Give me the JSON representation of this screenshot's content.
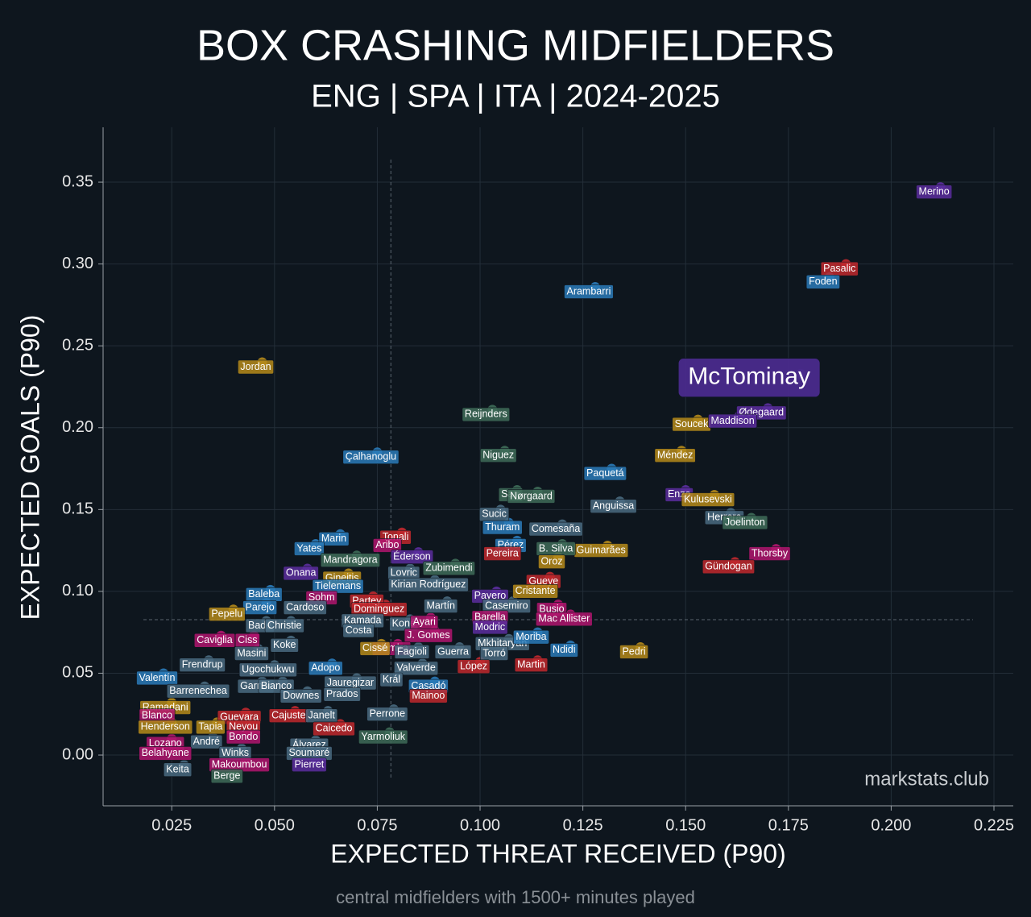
{
  "chart_data": {
    "type": "scatter",
    "title": "BOX CRASHING MIDFIELDERS",
    "subtitle": "ENG | SPA | ITA | 2024-2025",
    "x_label": "EXPECTED THREAT RECEIVED (P90)",
    "y_label": "EXPECTED GOALS (P90)",
    "watermark": "markstats.club",
    "caption": "central midfielders with 1500+ minutes played",
    "xlim": [
      0.0083,
      0.2297
    ],
    "ylim": [
      -0.031,
      0.3835
    ],
    "xticks": [
      0.025,
      {
        "value": 0.05,
        "label": "0.050"
      },
      0.075,
      {
        "value": 0.1,
        "label": "0.100"
      },
      0.125,
      {
        "value": 0.15,
        "label": "0.150"
      },
      0.175,
      {
        "value": 0.2,
        "label": "0.200"
      },
      0.225
    ],
    "yticks": [
      {
        "value": 0,
        "label": "0.00"
      },
      0.05,
      {
        "value": 0.1,
        "label": "0.10"
      },
      0.15,
      {
        "value": 0.2,
        "label": "0.20"
      },
      0.25,
      {
        "value": 0.3,
        "label": "0.30"
      },
      0.35
    ],
    "grid": true,
    "reference_lines": {
      "x": 0.0783,
      "y": 0.0827
    },
    "highlight": "McTominay",
    "points": [
      {
        "label": "Merino",
        "x": 0.212,
        "y": 0.347,
        "color": "#5b2d9e"
      },
      {
        "label": "Pasalic",
        "x": 0.189,
        "y": 0.3,
        "color": "#c0282d"
      },
      {
        "label": "Foden",
        "x": 0.185,
        "y": 0.292,
        "color": "#2a7ab8"
      },
      {
        "label": "Arambarri",
        "x": 0.128,
        "y": 0.286,
        "color": "#2a7ab8"
      },
      {
        "label": "McTominay",
        "x": 0.178,
        "y": 0.233,
        "color": "#4a2a8c"
      },
      {
        "label": "Jordan",
        "x": 0.047,
        "y": 0.24,
        "color": "#b58a1a"
      },
      {
        "label": "Ødegaard",
        "x": 0.17,
        "y": 0.212,
        "color": "#5b2d9e"
      },
      {
        "label": "Soucek",
        "x": 0.153,
        "y": 0.205,
        "color": "#b58a1a"
      },
      {
        "label": "Maddison",
        "x": 0.163,
        "y": 0.207,
        "color": "#5b2d9e"
      },
      {
        "label": "Reijnders",
        "x": 0.103,
        "y": 0.211,
        "color": "#3e6b58"
      },
      {
        "label": "Çalhanoglu",
        "x": 0.075,
        "y": 0.185,
        "color": "#2a7ab8"
      },
      {
        "label": "Niguez",
        "x": 0.106,
        "y": 0.186,
        "color": "#3e6b58"
      },
      {
        "label": "Paquetá",
        "x": 0.132,
        "y": 0.175,
        "color": "#2a7ab8"
      },
      {
        "label": "Méndez",
        "x": 0.149,
        "y": 0.186,
        "color": "#b58a1a"
      },
      {
        "label": "Sarr",
        "x": 0.109,
        "y": 0.162,
        "color": "#3e6b58"
      },
      {
        "label": "Nørgaard",
        "x": 0.114,
        "y": 0.161,
        "color": "#3e6b58"
      },
      {
        "label": "Enzo",
        "x": 0.15,
        "y": 0.162,
        "color": "#5b2d9e"
      },
      {
        "label": "Kulusevski",
        "x": 0.157,
        "y": 0.159,
        "color": "#b58a1a"
      },
      {
        "label": "Sucic",
        "x": 0.105,
        "y": 0.15,
        "color": "#496a80"
      },
      {
        "label": "Anguissa",
        "x": 0.134,
        "y": 0.155,
        "color": "#496a80"
      },
      {
        "label": "Comesaña",
        "x": 0.12,
        "y": 0.141,
        "color": "#496a80"
      },
      {
        "label": "Herrera",
        "x": 0.161,
        "y": 0.148,
        "color": "#496a80"
      },
      {
        "label": "Joelinton",
        "x": 0.166,
        "y": 0.145,
        "color": "#3e6b58"
      },
      {
        "label": "Thuram",
        "x": 0.107,
        "y": 0.142,
        "color": "#2a7ab8"
      },
      {
        "label": "Tonali",
        "x": 0.081,
        "y": 0.136,
        "color": "#c0282d"
      },
      {
        "label": "Marin",
        "x": 0.066,
        "y": 0.135,
        "color": "#2a7ab8"
      },
      {
        "label": "Aribo",
        "x": 0.079,
        "y": 0.131,
        "color": "#b0156e"
      },
      {
        "label": "Pérez",
        "x": 0.109,
        "y": 0.131,
        "color": "#2a7ab8"
      },
      {
        "label": "Yates",
        "x": 0.06,
        "y": 0.129,
        "color": "#2a7ab8"
      },
      {
        "label": "Éderson",
        "x": 0.085,
        "y": 0.124,
        "color": "#5b2d9e"
      },
      {
        "label": "Guimarães",
        "x": 0.131,
        "y": 0.128,
        "color": "#b58a1a"
      },
      {
        "label": "Thorsby",
        "x": 0.172,
        "y": 0.126,
        "color": "#b0156e"
      },
      {
        "label": "Mandragora",
        "x": 0.07,
        "y": 0.122,
        "color": "#3e6b58"
      },
      {
        "label": "B. Silva",
        "x": 0.12,
        "y": 0.129,
        "color": "#3e6b58"
      },
      {
        "label": "Oroz",
        "x": 0.119,
        "y": 0.121,
        "color": "#b58a1a"
      },
      {
        "label": "Pereira",
        "x": 0.107,
        "y": 0.126,
        "color": "#c0282d"
      },
      {
        "label": "Onana",
        "x": 0.058,
        "y": 0.114,
        "color": "#5b2d9e"
      },
      {
        "label": "Lovric",
        "x": 0.083,
        "y": 0.114,
        "color": "#496a80"
      },
      {
        "label": "Zubimendi",
        "x": 0.094,
        "y": 0.117,
        "color": "#3e6b58"
      },
      {
        "label": "Gündogan",
        "x": 0.162,
        "y": 0.118,
        "color": "#c0282d"
      },
      {
        "label": "Gineitis",
        "x": 0.068,
        "y": 0.111,
        "color": "#b58a1a"
      },
      {
        "label": "Tielemans",
        "x": 0.067,
        "y": 0.106,
        "color": "#2a7ab8"
      },
      {
        "label": "Kirian Rodríguez",
        "x": 0.089,
        "y": 0.107,
        "color": "#496a80"
      },
      {
        "label": "Gueye",
        "x": 0.117,
        "y": 0.109,
        "color": "#c0282d"
      },
      {
        "label": "Baleba",
        "x": 0.049,
        "y": 0.101,
        "color": "#2a7ab8"
      },
      {
        "label": "Payero",
        "x": 0.104,
        "y": 0.1,
        "color": "#5b2d9e"
      },
      {
        "label": "Cristante",
        "x": 0.115,
        "y": 0.103,
        "color": "#b58a1a"
      },
      {
        "label": "Sohm",
        "x": 0.063,
        "y": 0.099,
        "color": "#b0156e"
      },
      {
        "label": "Partey",
        "x": 0.074,
        "y": 0.097,
        "color": "#c0282d"
      },
      {
        "label": "Martín",
        "x": 0.092,
        "y": 0.094,
        "color": "#496a80"
      },
      {
        "label": "Parejo",
        "x": 0.048,
        "y": 0.093,
        "color": "#2a7ab8"
      },
      {
        "label": "Cardoso",
        "x": 0.059,
        "y": 0.093,
        "color": "#496a80"
      },
      {
        "label": "Dominguez",
        "x": 0.077,
        "y": 0.092,
        "color": "#c0282d"
      },
      {
        "label": "Casemiro",
        "x": 0.108,
        "y": 0.094,
        "color": "#496a80"
      },
      {
        "label": "Busio",
        "x": 0.119,
        "y": 0.092,
        "color": "#b0156e"
      },
      {
        "label": "Pepelu",
        "x": 0.04,
        "y": 0.089,
        "color": "#b58a1a"
      },
      {
        "label": "Kamada",
        "x": 0.073,
        "y": 0.085,
        "color": "#496a80"
      },
      {
        "label": "Barella",
        "x": 0.104,
        "y": 0.087,
        "color": "#b0156e"
      },
      {
        "label": "Mac Allister",
        "x": 0.122,
        "y": 0.086,
        "color": "#b0156e"
      },
      {
        "label": "Badé",
        "x": 0.048,
        "y": 0.082,
        "color": "#496a80"
      },
      {
        "label": "Christie",
        "x": 0.054,
        "y": 0.082,
        "color": "#496a80"
      },
      {
        "label": "Koné",
        "x": 0.083,
        "y": 0.083,
        "color": "#496a80"
      },
      {
        "label": "Ayari",
        "x": 0.088,
        "y": 0.084,
        "color": "#b0156e"
      },
      {
        "label": "Costa",
        "x": 0.072,
        "y": 0.079,
        "color": "#496a80"
      },
      {
        "label": "Modric",
        "x": 0.104,
        "y": 0.081,
        "color": "#5b2d9e"
      },
      {
        "label": "J. Gomes",
        "x": 0.089,
        "y": 0.076,
        "color": "#b0156e"
      },
      {
        "label": "Caviglia",
        "x": 0.037,
        "y": 0.073,
        "color": "#b0156e"
      },
      {
        "label": "Ciss",
        "x": 0.045,
        "y": 0.073,
        "color": "#b0156e"
      },
      {
        "label": "Koke",
        "x": 0.054,
        "y": 0.07,
        "color": "#496a80"
      },
      {
        "label": "Mkhitaryan",
        "x": 0.107,
        "y": 0.071,
        "color": "#496a80"
      },
      {
        "label": "Moriba",
        "x": 0.114,
        "y": 0.075,
        "color": "#2a7ab8"
      },
      {
        "label": "Ndidi",
        "x": 0.122,
        "y": 0.067,
        "color": "#2a7ab8"
      },
      {
        "label": "Pedri",
        "x": 0.139,
        "y": 0.066,
        "color": "#b58a1a"
      },
      {
        "label": "Altimira",
        "x": 0.08,
        "y": 0.068,
        "color": "#b0156e"
      },
      {
        "label": "Cissé",
        "x": 0.076,
        "y": 0.068,
        "color": "#b58a1a"
      },
      {
        "label": "Fagioli",
        "x": 0.085,
        "y": 0.066,
        "color": "#496a80"
      },
      {
        "label": "Guerra",
        "x": 0.095,
        "y": 0.066,
        "color": "#496a80"
      },
      {
        "label": "Torró",
        "x": 0.105,
        "y": 0.065,
        "color": "#496a80"
      },
      {
        "label": "Masini",
        "x": 0.046,
        "y": 0.065,
        "color": "#496a80"
      },
      {
        "label": "Frendrup",
        "x": 0.034,
        "y": 0.058,
        "color": "#496a80"
      },
      {
        "label": "Ugochukwu",
        "x": 0.05,
        "y": 0.055,
        "color": "#496a80"
      },
      {
        "label": "Martin",
        "x": 0.114,
        "y": 0.058,
        "color": "#c0282d"
      },
      {
        "label": "López",
        "x": 0.1,
        "y": 0.057,
        "color": "#c0282d"
      },
      {
        "label": "Adopo",
        "x": 0.064,
        "y": 0.056,
        "color": "#2a7ab8"
      },
      {
        "label": "Valverde",
        "x": 0.086,
        "y": 0.056,
        "color": "#496a80"
      },
      {
        "label": "Valentín",
        "x": 0.023,
        "y": 0.05,
        "color": "#2a7ab8"
      },
      {
        "label": "Jauregizar",
        "x": 0.07,
        "y": 0.047,
        "color": "#496a80"
      },
      {
        "label": "Král",
        "x": 0.08,
        "y": 0.049,
        "color": "#496a80"
      },
      {
        "label": "Casadó",
        "x": 0.089,
        "y": 0.045,
        "color": "#2a7ab8"
      },
      {
        "label": "Garner",
        "x": 0.047,
        "y": 0.045,
        "color": "#496a80"
      },
      {
        "label": "Bianco",
        "x": 0.052,
        "y": 0.045,
        "color": "#496a80"
      },
      {
        "label": "Barrenechea",
        "x": 0.033,
        "y": 0.042,
        "color": "#496a80"
      },
      {
        "label": "Prados",
        "x": 0.068,
        "y": 0.04,
        "color": "#496a80"
      },
      {
        "label": "Downes",
        "x": 0.058,
        "y": 0.039,
        "color": "#496a80"
      },
      {
        "label": "Mainoo",
        "x": 0.089,
        "y": 0.039,
        "color": "#c0282d"
      },
      {
        "label": "Ramadani",
        "x": 0.025,
        "y": 0.032,
        "color": "#b58a1a"
      },
      {
        "label": "Blanco",
        "x": 0.023,
        "y": 0.027,
        "color": "#b0156e"
      },
      {
        "label": "Guevara",
        "x": 0.043,
        "y": 0.026,
        "color": "#c0282d"
      },
      {
        "label": "Cajuste",
        "x": 0.055,
        "y": 0.027,
        "color": "#c0282d"
      },
      {
        "label": "Janelt",
        "x": 0.063,
        "y": 0.027,
        "color": "#496a80"
      },
      {
        "label": "Perrone",
        "x": 0.079,
        "y": 0.028,
        "color": "#496a80"
      },
      {
        "label": "Henderson",
        "x": 0.025,
        "y": 0.02,
        "color": "#b58a1a"
      },
      {
        "label": "Tapia",
        "x": 0.036,
        "y": 0.02,
        "color": "#b58a1a"
      },
      {
        "label": "Neyou",
        "x": 0.044,
        "y": 0.02,
        "color": "#c0282d"
      },
      {
        "label": "Caicedo",
        "x": 0.066,
        "y": 0.019,
        "color": "#c0282d"
      },
      {
        "label": "Bondo",
        "x": 0.044,
        "y": 0.014,
        "color": "#b0156e"
      },
      {
        "label": "Yarmoliuk",
        "x": 0.078,
        "y": 0.014,
        "color": "#3e6b58"
      },
      {
        "label": "Lozano",
        "x": 0.025,
        "y": 0.01,
        "color": "#b0156e"
      },
      {
        "label": "André",
        "x": 0.035,
        "y": 0.011,
        "color": "#496a80"
      },
      {
        "label": "Álvarez",
        "x": 0.06,
        "y": 0.009,
        "color": "#496a80"
      },
      {
        "label": "Belahyane",
        "x": 0.025,
        "y": 0.004,
        "color": "#b0156e"
      },
      {
        "label": "Winks",
        "x": 0.042,
        "y": 0.004,
        "color": "#496a80"
      },
      {
        "label": "Soumaré",
        "x": 0.06,
        "y": 0.004,
        "color": "#496a80"
      },
      {
        "label": "Makoumbou",
        "x": 0.043,
        "y": -0.003,
        "color": "#b0156e"
      },
      {
        "label": "Pierret",
        "x": 0.06,
        "y": -0.003,
        "color": "#5b2d9e"
      },
      {
        "label": "Keita",
        "x": 0.028,
        "y": -0.006,
        "color": "#496a80"
      },
      {
        "label": "Berge",
        "x": 0.04,
        "y": -0.01,
        "color": "#3e6b58"
      }
    ]
  }
}
